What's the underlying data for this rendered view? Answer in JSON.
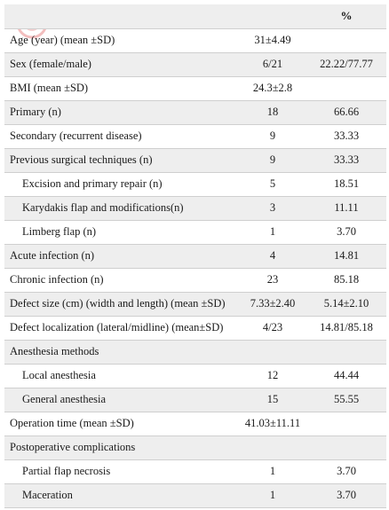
{
  "table": {
    "header": [
      "",
      "",
      "%"
    ],
    "rows": [
      {
        "label": "Age (year) (mean ±SD)",
        "value": "31±4.49",
        "percent": "",
        "indent": false
      },
      {
        "label": "Sex (female/male)",
        "value": "6/21",
        "percent": "22.22/77.77",
        "indent": false
      },
      {
        "label": "BMI (mean ±SD)",
        "value": "24.3±2.8",
        "percent": "",
        "indent": false
      },
      {
        "label": "Primary (n)",
        "value": "18",
        "percent": "66.66",
        "indent": false
      },
      {
        "label": "Secondary (recurrent disease)",
        "value": "9",
        "percent": "33.33",
        "indent": false
      },
      {
        "label": "Previous surgical techniques (n)",
        "value": "9",
        "percent": "33.33",
        "indent": false
      },
      {
        "label": "Excision and primary repair (n)",
        "value": "5",
        "percent": "18.51",
        "indent": true
      },
      {
        "label": "Karydakis flap and modifications(n)",
        "value": "3",
        "percent": "11.11",
        "indent": true
      },
      {
        "label": "Limberg flap (n)",
        "value": "1",
        "percent": "3.70",
        "indent": true
      },
      {
        "label": "Acute infection (n)",
        "value": "4",
        "percent": "14.81",
        "indent": false
      },
      {
        "label": "Chronic infection (n)",
        "value": "23",
        "percent": "85.18",
        "indent": false
      },
      {
        "label": "Defect size (cm) (width and length) (mean ±SD)",
        "value": "7.33±2.40",
        "percent": "5.14±2.10",
        "indent": false
      },
      {
        "label": "Defect localization (lateral/midline) (mean±SD)",
        "value": "4/23",
        "percent": "14.81/85.18",
        "indent": false
      },
      {
        "label": "Anesthesia methods",
        "value": "",
        "percent": "",
        "indent": false
      },
      {
        "label": "Local anesthesia",
        "value": "12",
        "percent": "44.44",
        "indent": true
      },
      {
        "label": "General anesthesia",
        "value": "15",
        "percent": "55.55",
        "indent": true
      },
      {
        "label": "Operation time (mean ±SD)",
        "value": "41.03±11.11",
        "percent": "",
        "indent": false
      },
      {
        "label": "Postoperative complications",
        "value": "",
        "percent": "",
        "indent": false
      },
      {
        "label": "Partial flap necrosis",
        "value": "1",
        "percent": "3.70",
        "indent": true
      },
      {
        "label": "Maceration",
        "value": "1",
        "percent": "3.70",
        "indent": true
      }
    ]
  },
  "colors": {
    "shade": "#eeeeee",
    "rule": "#cfcfcf",
    "text": "#1a1a1a"
  },
  "watermark_icon": "logo-watermark-icon"
}
